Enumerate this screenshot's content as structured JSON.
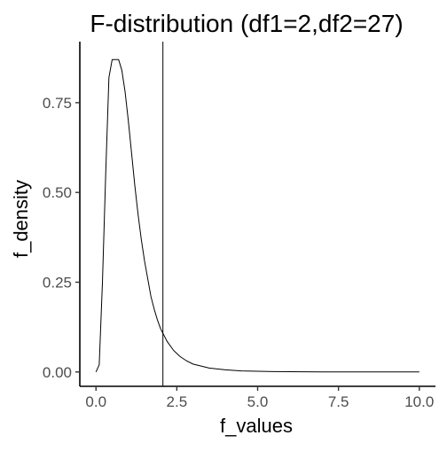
{
  "chart_data": {
    "type": "line",
    "title": "F-distribution (df1=2,df2=27)",
    "xlabel": "f_values",
    "ylabel": "f_density",
    "xlim": [
      -0.5,
      10.5
    ],
    "ylim": [
      -0.04,
      0.92
    ],
    "x_ticks": [
      0.0,
      2.5,
      5.0,
      7.5,
      10.0
    ],
    "x_tick_labels": [
      "0.0",
      "2.5",
      "5.0",
      "7.5",
      "10.0"
    ],
    "y_ticks": [
      0.0,
      0.25,
      0.5,
      0.75
    ],
    "y_tick_labels": [
      "0.00",
      "0.25",
      "0.50",
      "0.75"
    ],
    "vline": 2.07,
    "series": [
      {
        "name": "density",
        "x": [
          0.0,
          0.1,
          0.2,
          0.3,
          0.4,
          0.5,
          0.6,
          0.7,
          0.8,
          0.9,
          1.0,
          1.1,
          1.2,
          1.3,
          1.4,
          1.5,
          1.6,
          1.7,
          1.8,
          1.9,
          2.0,
          2.2,
          2.4,
          2.6,
          2.8,
          3.0,
          3.5,
          4.0,
          4.5,
          5.0,
          5.5,
          6.0,
          7.0,
          8.0,
          9.0,
          10.0
        ],
        "y": [
          0.0,
          0.02,
          0.25,
          0.55,
          0.82,
          0.87,
          0.87,
          0.87,
          0.84,
          0.78,
          0.7,
          0.61,
          0.52,
          0.44,
          0.37,
          0.31,
          0.26,
          0.21,
          0.175,
          0.145,
          0.12,
          0.085,
          0.06,
          0.043,
          0.031,
          0.022,
          0.011,
          0.006,
          0.003,
          0.002,
          0.001,
          0.0006,
          0.0002,
          0.0001,
          0.0,
          0.0
        ]
      }
    ]
  }
}
